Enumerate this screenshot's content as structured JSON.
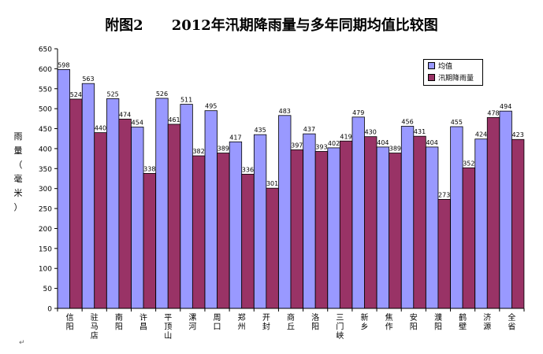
{
  "chart_data": {
    "type": "bar",
    "title": "附图2　　2012年汛期降雨量与多年同期均值比较图",
    "ylabel": "雨量（毫米）",
    "xlabel": "",
    "ylim": [
      0,
      650
    ],
    "ytick_step": 50,
    "grid": false,
    "legend_position": "top-right",
    "categories": [
      "信阳",
      "驻马店",
      "南阳",
      "许昌",
      "平顶山",
      "漯河",
      "周口",
      "郑州",
      "开封",
      "商丘",
      "洛阳",
      "三门峡",
      "新乡",
      "焦作",
      "安阳",
      "濮阳",
      "鹤壁",
      "济源",
      "全省"
    ],
    "series": [
      {
        "name": "均值",
        "color": "#9999ff",
        "values": [
          598,
          563,
          525,
          454,
          526,
          511,
          495,
          417,
          435,
          483,
          437,
          402,
          479,
          404,
          456,
          404,
          455,
          424,
          494
        ]
      },
      {
        "name": "汛期降雨量",
        "color": "#993366",
        "values": [
          524,
          440,
          474,
          338,
          461,
          382,
          389,
          336,
          301,
          397,
          393,
          419,
          430,
          389,
          431,
          273,
          352,
          478,
          423
        ]
      }
    ]
  }
}
